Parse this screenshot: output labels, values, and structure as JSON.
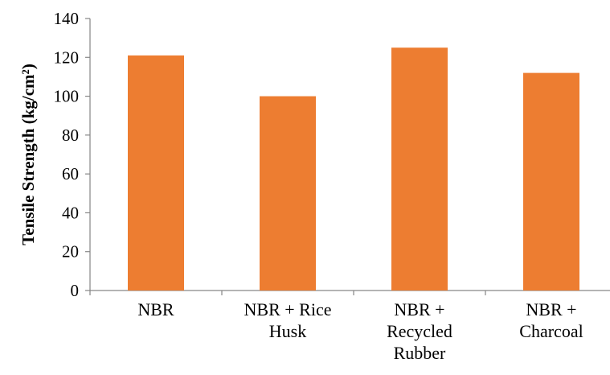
{
  "chart_data": {
    "type": "bar",
    "categories": [
      [
        "NBR"
      ],
      [
        "NBR + Rice",
        "Husk"
      ],
      [
        "NBR +",
        "Recycled",
        "Rubber"
      ],
      [
        "NBR +",
        "Charcoal"
      ]
    ],
    "values": [
      121,
      100,
      125,
      112
    ],
    "title": "",
    "xlabel": "",
    "ylabel": "Tensile Strength (kg/cm²)",
    "ylim": [
      0,
      140
    ],
    "yticks": [
      0,
      20,
      40,
      60,
      80,
      100,
      120,
      140
    ],
    "grid": false,
    "legend": "none",
    "bar_color": "#ED7D31",
    "axis_color": "#868686"
  }
}
